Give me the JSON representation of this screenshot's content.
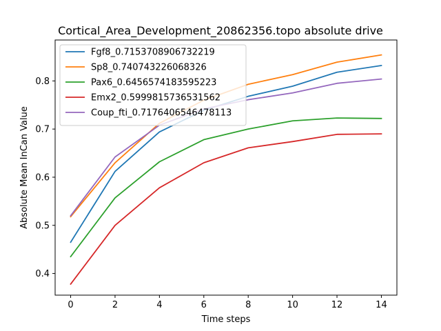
{
  "chart_data": {
    "type": "line",
    "title": "Cortical_Area_Development_20862356.topo absolute drive",
    "xlabel": "Time steps",
    "ylabel": "Absolute Mean InCan Value",
    "xlim": [
      -0.7,
      14.7
    ],
    "ylim": [
      0.355,
      0.885
    ],
    "xticks": [
      0,
      2,
      4,
      6,
      8,
      10,
      12,
      14
    ],
    "yticks": [
      0.4,
      0.5,
      0.6,
      0.7,
      0.8
    ],
    "ytick_labels": [
      "0.4",
      "0.5",
      "0.6",
      "0.7",
      "0.8"
    ],
    "grid": false,
    "legend_position": "top-left",
    "x": [
      0,
      2,
      4,
      6,
      8,
      10,
      12,
      14
    ],
    "series": [
      {
        "name": "Fgf8_0.7153708906732219",
        "color": "#1f77b4",
        "values": [
          0.465,
          0.612,
          0.694,
          0.739,
          0.768,
          0.789,
          0.818,
          0.832
        ]
      },
      {
        "name": "Sp8_0.740743226068326",
        "color": "#ff7f0e",
        "values": [
          0.518,
          0.63,
          0.712,
          0.76,
          0.793,
          0.813,
          0.839,
          0.854
        ]
      },
      {
        "name": "Pax6_0.6456574183595223",
        "color": "#2ca02c",
        "values": [
          0.435,
          0.557,
          0.632,
          0.678,
          0.7,
          0.717,
          0.723,
          0.722
        ]
      },
      {
        "name": "Emx2_0.5999815736531562",
        "color": "#d62728",
        "values": [
          0.378,
          0.5,
          0.578,
          0.63,
          0.661,
          0.674,
          0.689,
          0.69
        ]
      },
      {
        "name": "Coup_fti_0.7176406546478113",
        "color": "#9467bd",
        "values": [
          0.52,
          0.642,
          0.708,
          0.742,
          0.761,
          0.775,
          0.795,
          0.804
        ]
      }
    ]
  }
}
